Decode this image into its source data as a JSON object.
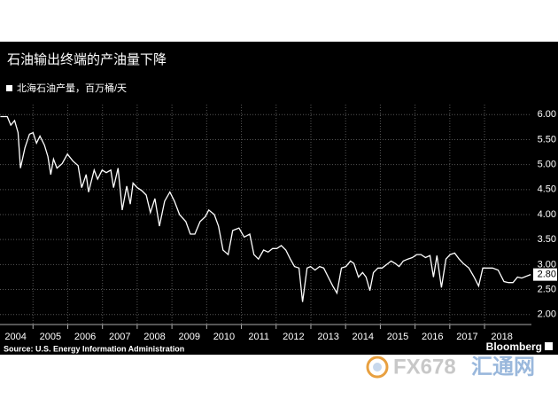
{
  "chart_data": {
    "type": "line",
    "title": "石油输出终端的产油量下降",
    "source": "Source: U.S. Energy Information Administration",
    "brand": "Bloomberg",
    "end_label": "2.80",
    "watermark_brand": "FX678",
    "watermark_name": "汇通网",
    "xlim": [
      2004.05,
      2019.35
    ],
    "ylim": [
      1.8,
      6.2
    ],
    "grid": true,
    "xticks": [
      2004,
      2005,
      2006,
      2007,
      2008,
      2009,
      2010,
      2011,
      2012,
      2013,
      2014,
      2015,
      2016,
      2017,
      2018
    ],
    "yticks": [
      {
        "value": 2,
        "label": "2.00"
      },
      {
        "value": 2.5,
        "label": "2.50"
      },
      {
        "value": 3,
        "label": "3.00"
      },
      {
        "value": 3.5,
        "label": "3.50"
      },
      {
        "value": 4,
        "label": "4.00"
      },
      {
        "value": 4.5,
        "label": "4.50"
      },
      {
        "value": 5,
        "label": "5.00"
      },
      {
        "value": 5.5,
        "label": "5.50"
      },
      {
        "value": 6,
        "label": "6.00"
      }
    ],
    "x": [
      2004.06,
      2004.26,
      2004.36,
      2004.47,
      2004.57,
      2004.64,
      2004.77,
      2004.9,
      2005.0,
      2005.1,
      2005.2,
      2005.33,
      2005.43,
      2005.51,
      2005.59,
      2005.69,
      2005.84,
      2005.99,
      2006.15,
      2006.3,
      2006.4,
      2006.53,
      2006.6,
      2006.76,
      2006.86,
      2006.99,
      2007.11,
      2007.24,
      2007.32,
      2007.45,
      2007.57,
      2007.7,
      2007.8,
      2007.88,
      2008.0,
      2008.13,
      2008.26,
      2008.38,
      2008.51,
      2008.64,
      2008.79,
      2008.94,
      2009.07,
      2009.22,
      2009.4,
      2009.53,
      2009.66,
      2009.81,
      2009.96,
      2010.06,
      2010.22,
      2010.34,
      2010.47,
      2010.62,
      2010.75,
      2010.93,
      2011.08,
      2011.24,
      2011.36,
      2011.49,
      2011.64,
      2011.77,
      2011.9,
      2012.02,
      2012.15,
      2012.28,
      2012.41,
      2012.53,
      2012.66,
      2012.76,
      2012.89,
      2012.99,
      2013.12,
      2013.25,
      2013.37,
      2013.5,
      2013.63,
      2013.75,
      2013.88,
      2014.01,
      2014.14,
      2014.24,
      2014.37,
      2014.49,
      2014.59,
      2014.7,
      2014.8,
      2014.93,
      2015.05,
      2015.18,
      2015.31,
      2015.43,
      2015.54,
      2015.66,
      2015.79,
      2015.92,
      2016.05,
      2016.17,
      2016.3,
      2016.43,
      2016.53,
      2016.63,
      2016.76,
      2016.89,
      2017.01,
      2017.14,
      2017.27,
      2017.39,
      2017.55,
      2017.7,
      2017.83,
      2017.95,
      2018.11,
      2018.23,
      2018.39,
      2018.56,
      2018.69,
      2018.82,
      2018.95,
      2019.07,
      2019.33
    ],
    "series": [
      {
        "name": "北海石油产量，百万桶/天",
        "color": "#ffffff",
        "values": [
          5.96,
          5.96,
          5.79,
          5.88,
          5.64,
          4.93,
          5.34,
          5.61,
          5.64,
          5.43,
          5.57,
          5.39,
          5.16,
          4.8,
          5.11,
          4.93,
          5.02,
          5.21,
          5.07,
          4.98,
          4.54,
          4.8,
          4.45,
          4.89,
          4.71,
          4.89,
          4.84,
          4.89,
          4.54,
          4.93,
          4.09,
          4.57,
          4.21,
          4.63,
          4.54,
          4.48,
          4.39,
          4.04,
          4.32,
          3.77,
          4.27,
          4.45,
          4.27,
          4.0,
          3.86,
          3.61,
          3.61,
          3.86,
          3.96,
          4.09,
          4.0,
          3.77,
          3.29,
          3.2,
          3.68,
          3.73,
          3.55,
          3.61,
          3.2,
          3.11,
          3.29,
          3.25,
          3.32,
          3.32,
          3.38,
          3.29,
          3.11,
          2.96,
          2.93,
          2.25,
          2.93,
          2.96,
          2.89,
          2.96,
          2.93,
          2.75,
          2.57,
          2.43,
          2.93,
          2.96,
          3.07,
          3.02,
          2.75,
          2.84,
          2.75,
          2.48,
          2.84,
          2.93,
          2.93,
          3.0,
          3.07,
          3.02,
          2.96,
          3.07,
          3.11,
          3.14,
          3.2,
          3.2,
          3.14,
          3.18,
          2.75,
          3.18,
          2.54,
          3.11,
          3.2,
          3.23,
          3.11,
          3.02,
          2.93,
          2.75,
          2.57,
          2.93,
          2.93,
          2.93,
          2.89,
          2.66,
          2.64,
          2.64,
          2.75,
          2.73,
          2.8
        ]
      }
    ]
  }
}
